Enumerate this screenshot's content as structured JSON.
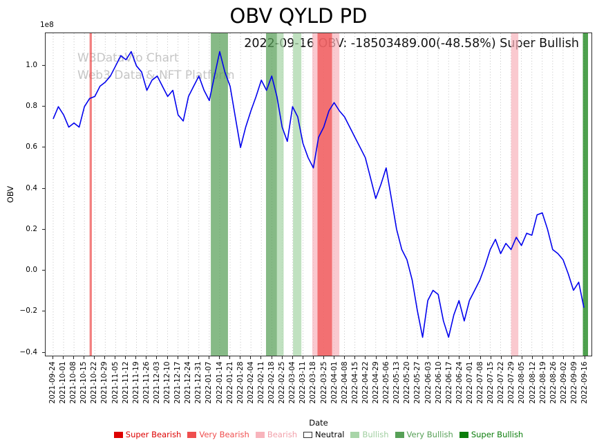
{
  "figure": {
    "title": "OBV QYLD PD",
    "annotation": "2022-09-16 OBV: -18503489.00(-48.58%) Super Bullish",
    "watermark_line1": "W3DataVio Chart",
    "watermark_line2": "Web3 Data & NFT Platform"
  },
  "levels": {
    "super_bearish": "#dd0000",
    "very_bearish": "#ef4e4e",
    "bearish": "#f8b4bc",
    "neutral": "#ffffff",
    "bullish": "#a8d5a8",
    "very_bullish": "#57a057",
    "super_bullish": "#0a7d0a"
  },
  "legend": {
    "items": [
      {
        "label": "Super Bearish",
        "color": "#dd0000",
        "label_color": "#dd0000",
        "edge": "none"
      },
      {
        "label": "Very Bearish",
        "color": "#ef4e4e",
        "label_color": "#ef4e4e",
        "edge": "none"
      },
      {
        "label": "Bearish",
        "color": "#f8b4bc",
        "label_color": "#f2a0aa",
        "edge": "none"
      },
      {
        "label": "Neutral",
        "color": "#ffffff",
        "label_color": "#000000",
        "edge": "#333333"
      },
      {
        "label": "Bullish",
        "color": "#a8d5a8",
        "label_color": "#a0cfa0",
        "edge": "none"
      },
      {
        "label": "Very Bullish",
        "color": "#57a057",
        "label_color": "#57a057",
        "edge": "none"
      },
      {
        "label": "Super Bullish",
        "color": "#0a7d0a",
        "label_color": "#0a7d0a",
        "edge": "none"
      }
    ]
  },
  "chart_data": {
    "type": "line",
    "title": "OBV QYLD PD",
    "xlabel": "Date",
    "ylabel": "OBV",
    "y_offset_label": "1e8",
    "y_unit": "1e8",
    "ylim": [
      -0.42,
      1.16
    ],
    "grid": {
      "vertical_dotted": true,
      "color": "#b0b0b0"
    },
    "legend_position": "bottom",
    "y_ticks": [
      {
        "v": -0.4,
        "label": "−0.4"
      },
      {
        "v": -0.2,
        "label": "−0.2"
      },
      {
        "v": 0.0,
        "label": "0.0"
      },
      {
        "v": 0.2,
        "label": "0.2"
      },
      {
        "v": 0.4,
        "label": "0.4"
      },
      {
        "v": 0.6,
        "label": "0.6"
      },
      {
        "v": 0.8,
        "label": "0.8"
      },
      {
        "v": 1.0,
        "label": "1.0"
      }
    ],
    "x_tick_labels": [
      "2021-09-24",
      "2021-10-01",
      "2021-10-08",
      "2021-10-15",
      "2021-10-22",
      "2021-10-29",
      "2021-11-05",
      "2021-11-12",
      "2021-11-19",
      "2021-11-26",
      "2021-12-03",
      "2021-12-10",
      "2021-12-17",
      "2021-12-24",
      "2021-12-31",
      "2022-01-07",
      "2022-01-14",
      "2022-01-21",
      "2022-01-28",
      "2022-02-04",
      "2022-02-11",
      "2022-02-18",
      "2022-02-25",
      "2022-03-04",
      "2022-03-11",
      "2022-03-18",
      "2022-03-25",
      "2022-04-01",
      "2022-04-08",
      "2022-04-15",
      "2022-04-22",
      "2022-04-29",
      "2022-05-06",
      "2022-05-13",
      "2022-05-20",
      "2022-05-27",
      "2022-06-03",
      "2022-06-10",
      "2022-06-17",
      "2022-06-24",
      "2022-07-01",
      "2022-07-08",
      "2022-07-15",
      "2022-07-22",
      "2022-07-29",
      "2022-08-05",
      "2022-08-12",
      "2022-08-19",
      "2022-08-26",
      "2022-09-02",
      "2022-09-09",
      "2022-09-16"
    ],
    "series": [
      {
        "name": "OBV",
        "color": "#0000ee",
        "x_step_weeks": 0.5,
        "values": [
          0.74,
          0.8,
          0.76,
          0.7,
          0.72,
          0.7,
          0.8,
          0.84,
          0.85,
          0.9,
          0.92,
          0.95,
          1.0,
          1.05,
          1.03,
          1.07,
          1.0,
          0.97,
          0.88,
          0.93,
          0.95,
          0.9,
          0.85,
          0.88,
          0.76,
          0.73,
          0.85,
          0.9,
          0.95,
          0.88,
          0.83,
          0.95,
          1.07,
          0.97,
          0.9,
          0.75,
          0.6,
          0.7,
          0.78,
          0.85,
          0.93,
          0.88,
          0.95,
          0.85,
          0.7,
          0.63,
          0.8,
          0.75,
          0.62,
          0.55,
          0.5,
          0.65,
          0.7,
          0.78,
          0.82,
          0.78,
          0.75,
          0.7,
          0.65,
          0.6,
          0.55,
          0.45,
          0.35,
          0.42,
          0.5,
          0.35,
          0.2,
          0.1,
          0.05,
          -0.05,
          -0.2,
          -0.33,
          -0.15,
          -0.1,
          -0.12,
          -0.25,
          -0.33,
          -0.22,
          -0.15,
          -0.25,
          -0.15,
          -0.1,
          -0.05,
          0.02,
          0.1,
          0.15,
          0.08,
          0.13,
          0.1,
          0.16,
          0.12,
          0.18,
          0.17,
          0.27,
          0.28,
          0.2,
          0.1,
          0.08,
          0.05,
          -0.02,
          -0.1,
          -0.06,
          -0.185
        ]
      }
    ],
    "signal_bands": [
      {
        "from_week": 3.5,
        "to_week": 3.72,
        "level": "very_bearish"
      },
      {
        "from_week": 15.15,
        "to_week": 16.8,
        "level": "very_bullish"
      },
      {
        "from_week": 20.45,
        "to_week": 21.5,
        "level": "very_bullish"
      },
      {
        "from_week": 21.5,
        "to_week": 22.15,
        "level": "bullish"
      },
      {
        "from_week": 23.05,
        "to_week": 23.85,
        "level": "bullish"
      },
      {
        "from_week": 24.9,
        "to_week": 27.5,
        "level": "bearish"
      },
      {
        "from_week": 25.4,
        "to_week": 26.8,
        "level": "very_bearish"
      },
      {
        "from_week": 44.0,
        "to_week": 44.7,
        "level": "bearish"
      },
      {
        "from_week": 50.9,
        "to_week": 51.4,
        "level": "super_bullish"
      }
    ]
  }
}
